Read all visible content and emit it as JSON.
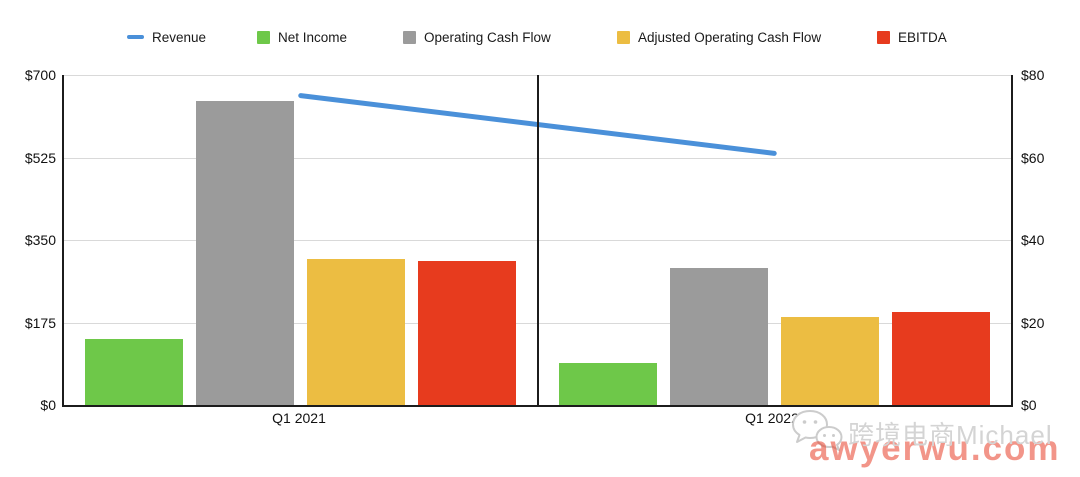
{
  "chart_data": {
    "type": "combo",
    "categories": [
      "Q1 2021",
      "Q1 2022"
    ],
    "bar_series": [
      {
        "name": "Net Income",
        "color": "#6EC849",
        "axis": "left",
        "values": [
          140,
          90
        ]
      },
      {
        "name": "Operating Cash Flow",
        "color": "#9B9B9B",
        "axis": "left",
        "values": [
          645,
          290
        ]
      },
      {
        "name": "Adjusted Operating Cash Flow",
        "color": "#ECBD42",
        "axis": "left",
        "values": [
          310,
          187
        ]
      },
      {
        "name": "EBITDA",
        "color": "#E73B1E",
        "axis": "left",
        "values": [
          305,
          197
        ]
      }
    ],
    "line_series": [
      {
        "name": "Revenue",
        "color": "#4A90D9",
        "axis": "right",
        "values": [
          75,
          61
        ]
      }
    ],
    "left_axis": {
      "min": 0,
      "max": 700,
      "tick_labels": [
        "$0",
        "$175",
        "$350",
        "$525",
        "$700"
      ]
    },
    "right_axis": {
      "min": 0,
      "max": 80,
      "tick_labels": [
        "$0",
        "$20",
        "$40",
        "$60",
        "$80"
      ]
    },
    "grid": true,
    "legend_position": "top"
  },
  "legend": {
    "items": [
      {
        "label": "Revenue",
        "marker": "line",
        "color": "#4A90D9"
      },
      {
        "label": "Net Income",
        "marker": "square",
        "color": "#6EC849"
      },
      {
        "label": "Operating Cash Flow",
        "marker": "square",
        "color": "#9B9B9B"
      },
      {
        "label": "Adjusted Operating Cash Flow",
        "marker": "square",
        "color": "#ECBD42"
      },
      {
        "label": "EBITDA",
        "marker": "square",
        "color": "#E73B1E"
      }
    ]
  },
  "axes": {
    "left_ticks": [
      "$700",
      "$525",
      "$350",
      "$175",
      "$0"
    ],
    "right_ticks": [
      "$80",
      "$60",
      "$40",
      "$20",
      "$0"
    ]
  },
  "watermark": {
    "icon": "wechat-icon",
    "brand_text": "跨境电商Michael",
    "brand_color": "#D4D4D4",
    "url_text": "awyerwu.com",
    "url_color": "#E8402A"
  }
}
